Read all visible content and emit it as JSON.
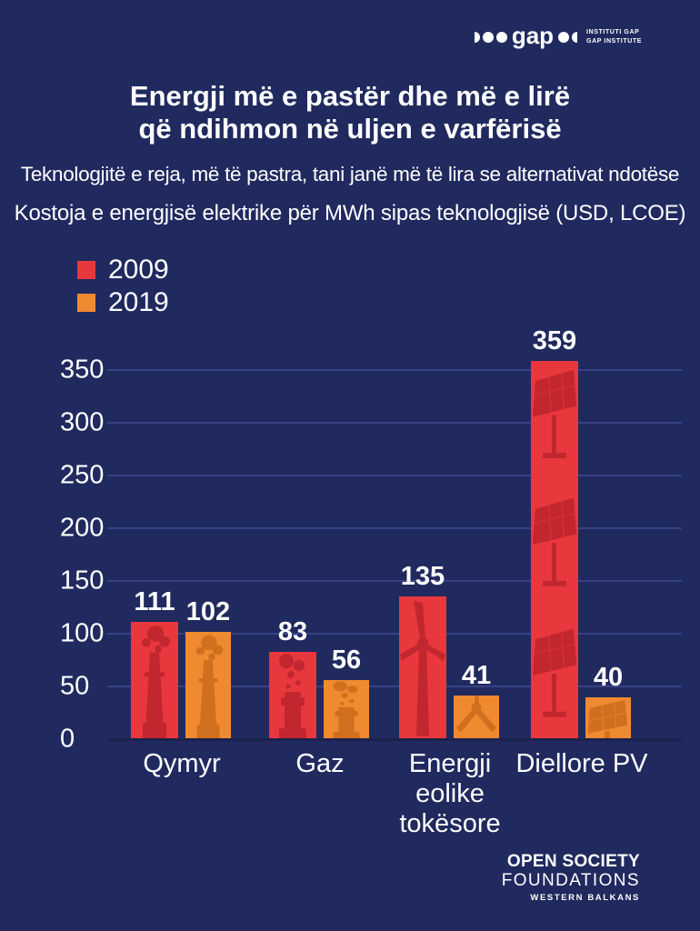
{
  "header": {
    "gap_logo": {
      "wordmark": "gap",
      "tagline_line1": "INSTITUTI GAP",
      "tagline_line2": "GAP INSTITUTE"
    },
    "title_line1": "Energji më e pastër dhe më e lirë",
    "title_line2": "që ndihmon në uljen e varfërisë",
    "subtitle": "Teknologjitë e reja, më të pastra, tani janë më të lira se alternativat ndotëse",
    "chart_caption": "Kostoja e energjisë elektrike për MWh sipas teknologjisë (USD, LCOE)"
  },
  "chart_data": {
    "type": "bar",
    "title": "Kostoja e energjisë elektrike për MWh sipas teknologjisë (USD, LCOE)",
    "categories": [
      "Qymyr",
      "Gaz",
      "Energji\neolike\ntokësore",
      "Diellore PV"
    ],
    "series": [
      {
        "name": "2009",
        "color": "#e8383d",
        "icon_color": "#c2262e",
        "values": [
          111,
          83,
          135,
          359
        ],
        "icons": [
          "coal-chimney-icon",
          "gas-pipe-icon",
          "wind-turbine-icon",
          "solar-panels-icon"
        ]
      },
      {
        "name": "2019",
        "color": "#ef8a30",
        "icon_color": "#d06f1e",
        "values": [
          102,
          56,
          41,
          40
        ],
        "icons": [
          "coal-chimney-icon",
          "gas-pipe-icon",
          "wind-hub-icon",
          "solar-panel-icon"
        ]
      }
    ],
    "ylim": [
      0,
      350
    ],
    "yticks": [
      0,
      50,
      100,
      150,
      200,
      250,
      300,
      350
    ],
    "grid": "horizontal",
    "legend_position": "top-left",
    "value_labels": true,
    "background_color": "#202a5f"
  },
  "footer": {
    "org_line1": "OPEN SOCIETY",
    "org_line2": "FOUNDATIONS",
    "org_line3": "WESTERN BALKANS"
  }
}
